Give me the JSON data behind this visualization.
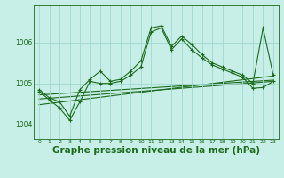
{
  "background_color": "#c8eee8",
  "grid_color": "#a0d8d0",
  "line_color": "#1a6b1a",
  "xlabel": "Graphe pression niveau de la mer (hPa)",
  "xlabel_fontsize": 7.5,
  "xlim": [
    -0.5,
    23.5
  ],
  "ylim": [
    1003.65,
    1006.9
  ],
  "yticks": [
    1004,
    1005,
    1006
  ],
  "xticks": [
    0,
    1,
    2,
    3,
    4,
    5,
    6,
    7,
    8,
    9,
    10,
    11,
    12,
    13,
    14,
    15,
    16,
    17,
    18,
    19,
    20,
    21,
    22,
    23
  ],
  "series": [
    {
      "x": [
        0,
        1,
        2,
        3,
        4,
        5,
        6,
        7,
        8,
        9,
        10,
        11,
        12,
        13,
        14,
        15,
        16,
        17,
        18,
        19,
        20,
        21,
        22,
        23
      ],
      "y": [
        1004.85,
        1004.65,
        1004.55,
        1004.2,
        1004.85,
        1005.1,
        1005.3,
        1005.05,
        1005.1,
        1005.3,
        1005.55,
        1006.35,
        1006.4,
        1005.9,
        1006.15,
        1005.95,
        1005.7,
        1005.5,
        1005.4,
        1005.3,
        1005.2,
        1005.0,
        1006.35,
        1005.2
      ],
      "marker": true
    },
    {
      "x": [
        0,
        1,
        2,
        3,
        4,
        5,
        6,
        7,
        8,
        9,
        10,
        11,
        12,
        13,
        14,
        15,
        16,
        17,
        18,
        19,
        20,
        21,
        22,
        23
      ],
      "y": [
        1004.8,
        1004.6,
        1004.4,
        1004.1,
        1004.55,
        1005.05,
        1005.0,
        1005.0,
        1005.05,
        1005.2,
        1005.4,
        1006.25,
        1006.35,
        1005.82,
        1006.08,
        1005.82,
        1005.62,
        1005.45,
        1005.35,
        1005.25,
        1005.15,
        1004.88,
        1004.9,
        1005.05
      ],
      "marker": true
    },
    {
      "x": [
        0,
        23
      ],
      "y": [
        1004.72,
        1005.08
      ],
      "marker": false
    },
    {
      "x": [
        0,
        23
      ],
      "y": [
        1004.62,
        1005.05
      ],
      "marker": false
    },
    {
      "x": [
        0,
        23
      ],
      "y": [
        1004.48,
        1005.18
      ],
      "marker": false
    }
  ]
}
